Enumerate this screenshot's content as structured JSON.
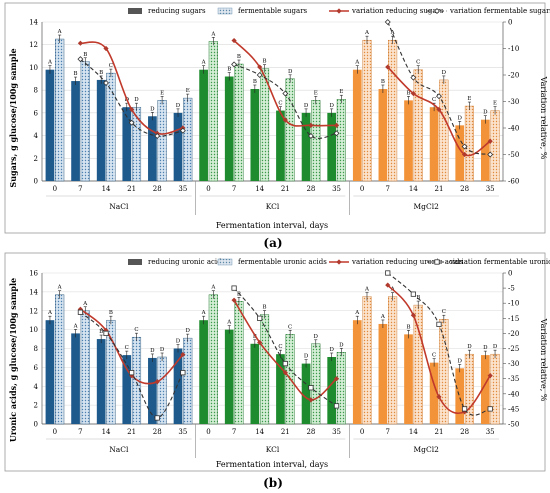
{
  "figure": {
    "panel_labels": [
      "(a)",
      "(b)"
    ]
  },
  "chart_data": [
    {
      "type": "bar",
      "panel": "(a)",
      "categories": [
        "0",
        "7",
        "14",
        "21",
        "28",
        "35"
      ],
      "groups": [
        "NaCl",
        "KCl",
        "MgCl2"
      ],
      "xlabel": "Fermentation interval, days",
      "ylabel": "Sugars, g glucose/100g sample",
      "y2label": "Variation relative, %",
      "ylim": [
        0,
        14
      ],
      "yticks": [
        0,
        2,
        4,
        6,
        8,
        10,
        12,
        14
      ],
      "y2lim": [
        -60,
        0
      ],
      "y2ticks": [
        0,
        -10,
        -20,
        -30,
        -40,
        -50,
        -60
      ],
      "legend": [
        "reducing sugars",
        "fermentable sugars",
        "variation reducing sugars",
        "variation fermentable sugars"
      ],
      "bar_series": [
        {
          "name": "reducing sugars",
          "values": {
            "NaCl": [
              9.8,
              8.8,
              8.9,
              6.5,
              5.7,
              6.0
            ],
            "KCl": [
              9.8,
              9.2,
              8.1,
              6.2,
              6.0,
              6.0
            ],
            "MgCl2": [
              9.8,
              8.1,
              7.1,
              6.5,
              4.9,
              5.4
            ]
          },
          "letters": {
            "NaCl": [
              "A",
              "B",
              "B",
              "D",
              "D",
              "D"
            ],
            "KCl": [
              "A",
              "B",
              "B",
              "C",
              "D",
              "D"
            ],
            "MgCl2": [
              "A",
              "B",
              "B",
              "C",
              "D",
              "D"
            ]
          }
        },
        {
          "name": "fermentable sugars",
          "values": {
            "NaCl": [
              12.5,
              10.5,
              9.5,
              6.5,
              7.1,
              7.3
            ],
            "KCl": [
              12.3,
              10.3,
              9.9,
              9.0,
              7.1,
              7.2
            ],
            "MgCl2": [
              12.4,
              12.4,
              9.8,
              8.9,
              6.6,
              6.2
            ]
          },
          "letters": {
            "NaCl": [
              "A",
              "B",
              "C",
              "D",
              "E",
              "E"
            ],
            "KCl": [
              "A",
              "B",
              "B",
              "D",
              "E",
              "E"
            ],
            "MgCl2": [
              "A",
              "A",
              "C",
              "D",
              "E",
              "E"
            ]
          }
        }
      ],
      "line_series": [
        {
          "name": "variation reducing sugars",
          "values": {
            "NaCl": [
              -8,
              -10,
              -33,
              -42,
              -40
            ],
            "KCl": [
              -7,
              -17,
              -37,
              -39,
              -39
            ],
            "MgCl2": [
              -17,
              -27,
              -33,
              -50,
              -45
            ]
          }
        },
        {
          "name": "variation fermentable sugars",
          "values": {
            "NaCl": [
              -14,
              -23,
              -38,
              -43,
              -41
            ],
            "KCl": [
              -16,
              -20,
              -27,
              -43,
              -42
            ],
            "MgCl2": [
              0,
              -21,
              -28,
              -47,
              -50
            ]
          }
        }
      ]
    },
    {
      "type": "bar",
      "panel": "(b)",
      "categories": [
        "0",
        "7",
        "14",
        "21",
        "28",
        "35"
      ],
      "groups": [
        "NaCl",
        "KCl",
        "MgCl2"
      ],
      "xlabel": "Fermentation interval, days",
      "ylabel": "Uronic acids, g glucose/100g sample",
      "y2label": "Variation relative, %",
      "ylim": [
        0,
        16
      ],
      "yticks": [
        0,
        2,
        4,
        6,
        8,
        10,
        12,
        14,
        16
      ],
      "y2lim": [
        -50,
        0
      ],
      "y2ticks": [
        0,
        -5,
        -10,
        -15,
        -20,
        -25,
        -30,
        -35,
        -40,
        -45,
        -50
      ],
      "legend": [
        "reducing uronic acids",
        "fermentable uronic acids",
        "variation reducing uronic acids",
        "variation fermentable uronic acids"
      ],
      "bar_series": [
        {
          "name": "reducing uronic acids",
          "values": {
            "NaCl": [
              11.0,
              9.6,
              9.0,
              7.3,
              7.0,
              8.0
            ],
            "KCl": [
              11.0,
              10.0,
              8.5,
              7.4,
              6.4,
              7.1
            ],
            "MgCl2": [
              11.0,
              10.6,
              9.5,
              6.5,
              5.9,
              7.3
            ]
          },
          "letters": {
            "NaCl": [
              "A",
              "A",
              "B",
              "C",
              "D",
              "D"
            ],
            "KCl": [
              "A",
              "A",
              "B",
              "C",
              "D",
              "D"
            ],
            "MgCl2": [
              "A",
              "A",
              "B",
              "C",
              "D",
              "D"
            ]
          }
        },
        {
          "name": "fermentable uronic acids",
          "values": {
            "NaCl": [
              13.7,
              12.0,
              11.0,
              9.2,
              7.1,
              9.1
            ],
            "KCl": [
              13.7,
              13.0,
              11.6,
              9.5,
              8.5,
              7.6
            ],
            "MgCl2": [
              13.5,
              13.5,
              12.6,
              11.1,
              7.4,
              7.4
            ]
          },
          "letters": {
            "NaCl": [
              "A",
              "A",
              "B",
              "C",
              "D",
              "D"
            ],
            "KCl": [
              "A",
              "B",
              "B",
              "C",
              "D",
              "D"
            ],
            "MgCl2": [
              "A",
              "A",
              "B",
              "C",
              "D",
              "D"
            ]
          }
        }
      ],
      "line_series": [
        {
          "name": "variation reducing uronic acids",
          "values": {
            "NaCl": [
              -12,
              -19,
              -34,
              -36,
              -27
            ],
            "KCl": [
              -9,
              -23,
              -33,
              -42,
              -35
            ],
            "MgCl2": [
              -4,
              -14,
              -41,
              -46,
              -34
            ]
          }
        },
        {
          "name": "variation fermentable uronic acids",
          "values": {
            "NaCl": [
              -13,
              -20,
              -33,
              -48,
              -33
            ],
            "KCl": [
              -5,
              -15,
              -30,
              -38,
              -44
            ],
            "MgCl2": [
              0,
              -7,
              -17,
              -45,
              -45
            ]
          }
        }
      ]
    }
  ]
}
